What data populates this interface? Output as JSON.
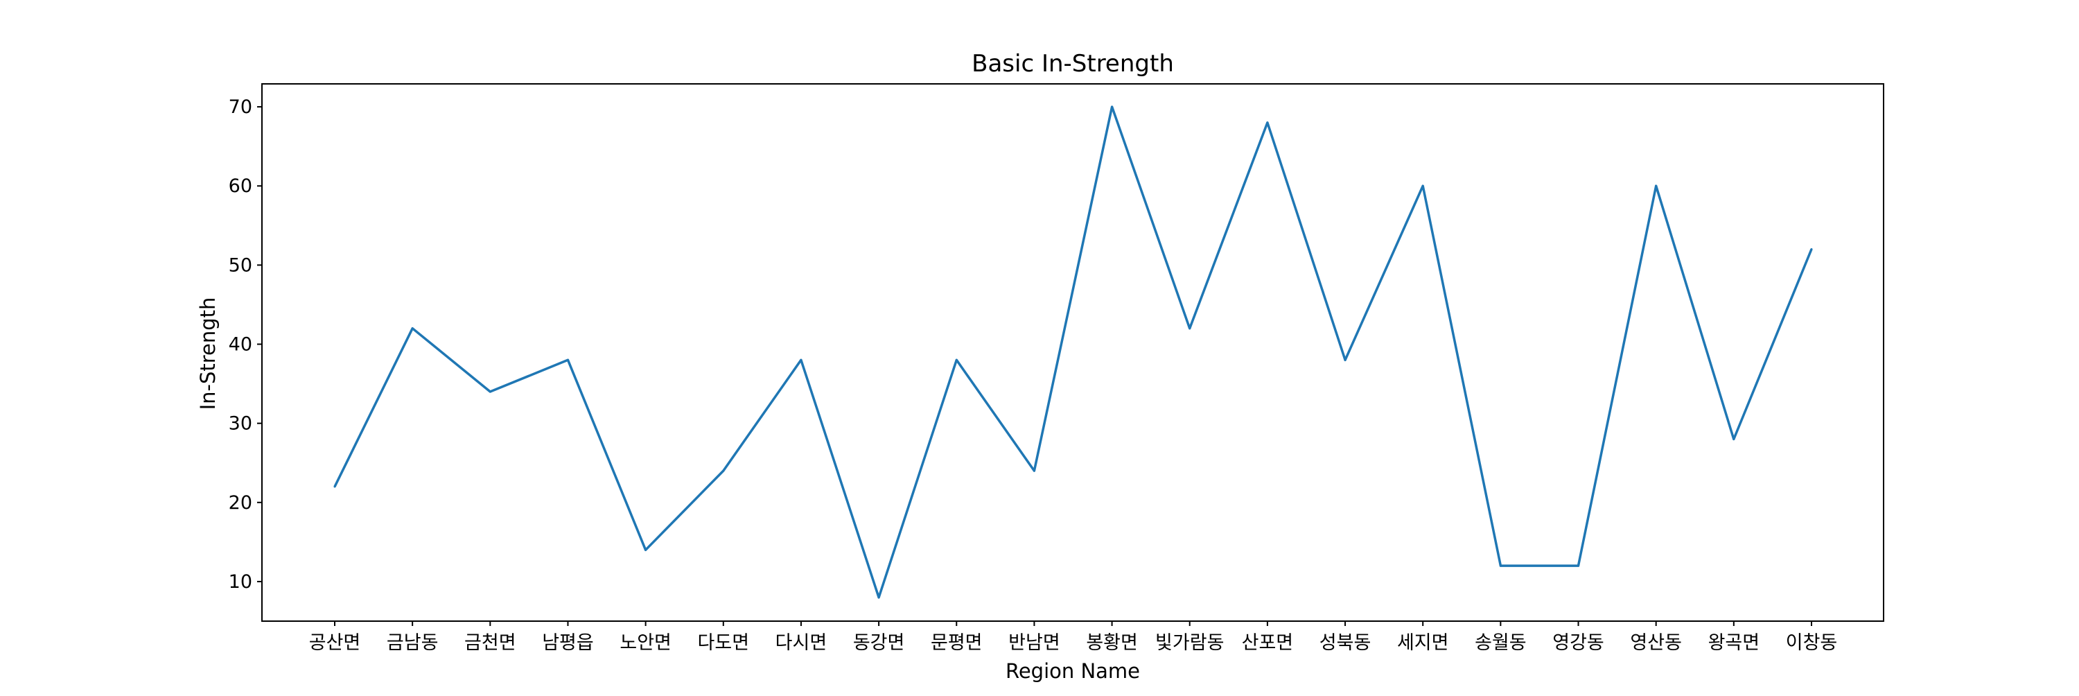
{
  "chart_data": {
    "type": "line",
    "title": "Basic In-Strength",
    "xlabel": "Region Name",
    "ylabel": "In-Strength",
    "categories": [
      "공산면",
      "금남동",
      "금천면",
      "남평읍",
      "노안면",
      "다도면",
      "다시면",
      "동강면",
      "문평면",
      "반남면",
      "봉황면",
      "빛가람동",
      "산포면",
      "성북동",
      "세지면",
      "송월동",
      "영강동",
      "영산동",
      "왕곡면",
      "이창동"
    ],
    "values": [
      22,
      42,
      34,
      38,
      14,
      24,
      38,
      8,
      38,
      24,
      70,
      42,
      68,
      38,
      60,
      12,
      12,
      60,
      28,
      52
    ],
    "ylim": [
      5,
      72.9
    ],
    "yticks": [
      10,
      20,
      30,
      40,
      50,
      60,
      70
    ],
    "grid": false,
    "line_color": "#1f77b4"
  }
}
